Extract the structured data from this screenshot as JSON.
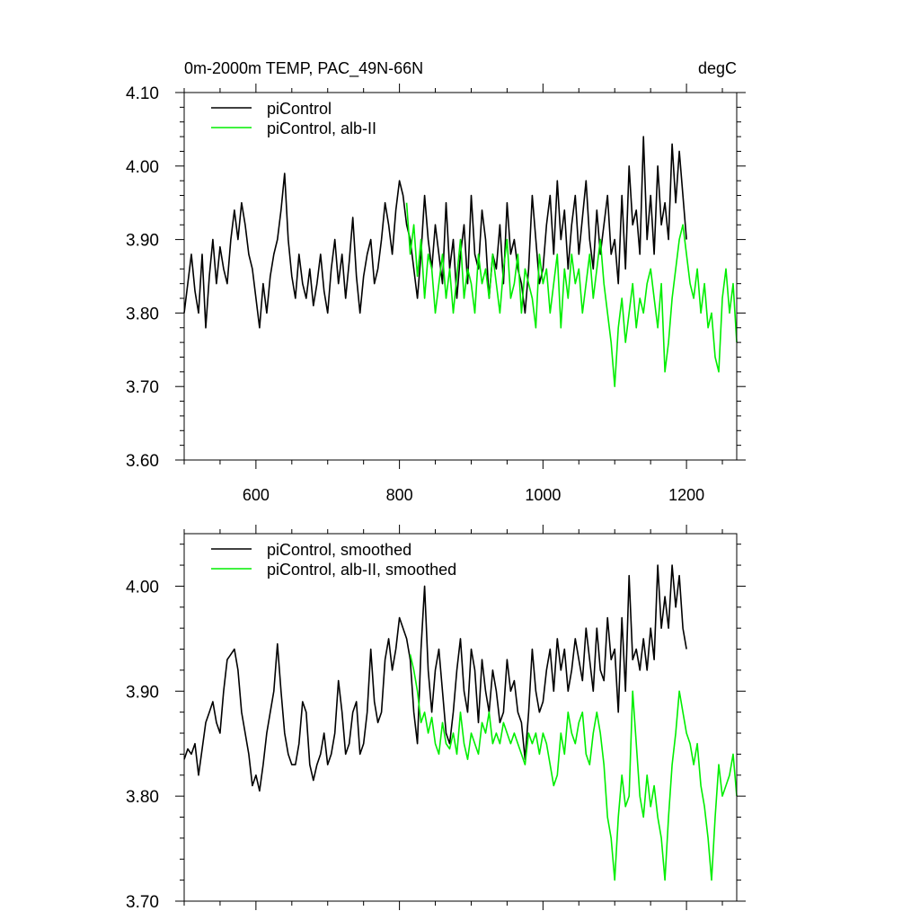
{
  "chart_data": [
    {
      "type": "line",
      "title_left": "0m-2000m TEMP, PAC_49N-66N",
      "title_right": "degC",
      "xlim": [
        500,
        1270
      ],
      "ylim": [
        3.6,
        4.1
      ],
      "xticks": [
        600,
        800,
        1000,
        1200
      ],
      "xtick_labels": [
        "600",
        "800",
        "1000",
        "1200"
      ],
      "yticks": [
        3.6,
        3.7,
        3.8,
        3.9,
        4.0,
        4.1
      ],
      "ytick_labels": [
        "3.60",
        "3.70",
        "3.80",
        "3.90",
        "4.00",
        "4.10"
      ],
      "legend_position": "top-left",
      "series": [
        {
          "name": "piControl",
          "color": "#000000",
          "x": [
            500,
            505,
            510,
            515,
            520,
            525,
            530,
            535,
            540,
            545,
            550,
            555,
            560,
            565,
            570,
            575,
            580,
            585,
            590,
            595,
            600,
            605,
            610,
            615,
            620,
            625,
            630,
            635,
            640,
            645,
            650,
            655,
            660,
            665,
            670,
            675,
            680,
            685,
            690,
            695,
            700,
            705,
            710,
            715,
            720,
            725,
            730,
            735,
            740,
            745,
            750,
            755,
            760,
            765,
            770,
            775,
            780,
            785,
            790,
            795,
            800,
            805,
            810,
            815,
            820,
            825,
            830,
            835,
            840,
            845,
            850,
            855,
            860,
            865,
            870,
            875,
            880,
            885,
            890,
            895,
            900,
            905,
            910,
            915,
            920,
            925,
            930,
            935,
            940,
            945,
            950,
            955,
            960,
            965,
            970,
            975,
            980,
            985,
            990,
            995,
            1000,
            1005,
            1010,
            1015,
            1020,
            1025,
            1030,
            1035,
            1040,
            1045,
            1050,
            1055,
            1060,
            1065,
            1070,
            1075,
            1080,
            1085,
            1090,
            1095,
            1100,
            1105,
            1110,
            1115,
            1120,
            1125,
            1130,
            1135,
            1140,
            1145,
            1150,
            1155,
            1160,
            1165,
            1170,
            1175,
            1180,
            1185,
            1190,
            1195,
            1200
          ],
          "y": [
            3.8,
            3.84,
            3.88,
            3.83,
            3.8,
            3.88,
            3.78,
            3.85,
            3.9,
            3.84,
            3.89,
            3.86,
            3.84,
            3.9,
            3.94,
            3.9,
            3.95,
            3.92,
            3.88,
            3.86,
            3.82,
            3.78,
            3.84,
            3.8,
            3.85,
            3.88,
            3.9,
            3.94,
            3.99,
            3.9,
            3.85,
            3.82,
            3.88,
            3.84,
            3.82,
            3.86,
            3.81,
            3.84,
            3.88,
            3.83,
            3.8,
            3.86,
            3.9,
            3.84,
            3.88,
            3.82,
            3.87,
            3.93,
            3.85,
            3.8,
            3.85,
            3.88,
            3.9,
            3.84,
            3.86,
            3.9,
            3.95,
            3.92,
            3.88,
            3.94,
            3.98,
            3.96,
            3.92,
            3.9,
            3.86,
            3.82,
            3.88,
            3.96,
            3.9,
            3.86,
            3.92,
            3.88,
            3.84,
            3.95,
            3.86,
            3.9,
            3.82,
            3.88,
            3.92,
            3.84,
            3.96,
            3.88,
            3.86,
            3.94,
            3.9,
            3.82,
            3.88,
            3.86,
            3.92,
            3.84,
            3.95,
            3.88,
            3.9,
            3.86,
            3.84,
            3.8,
            3.86,
            3.96,
            3.9,
            3.84,
            3.86,
            3.92,
            3.96,
            3.88,
            3.98,
            3.9,
            3.94,
            3.86,
            3.92,
            3.96,
            3.88,
            3.93,
            3.98,
            3.9,
            3.86,
            3.94,
            3.88,
            3.92,
            3.96,
            3.88,
            3.9,
            3.84,
            3.96,
            3.86,
            4.0,
            3.92,
            3.94,
            3.88,
            4.04,
            3.9,
            3.96,
            3.88,
            4.0,
            3.92,
            3.95,
            3.9,
            4.03,
            3.95,
            4.02,
            3.96,
            3.9
          ]
        },
        {
          "name": "piControl, alb-II",
          "color": "#00ee00",
          "x": [
            810,
            815,
            820,
            825,
            830,
            835,
            840,
            845,
            850,
            855,
            860,
            865,
            870,
            875,
            880,
            885,
            890,
            895,
            900,
            905,
            910,
            915,
            920,
            925,
            930,
            935,
            940,
            945,
            950,
            955,
            960,
            965,
            970,
            975,
            980,
            985,
            990,
            995,
            1000,
            1005,
            1010,
            1015,
            1020,
            1025,
            1030,
            1035,
            1040,
            1045,
            1050,
            1055,
            1060,
            1065,
            1070,
            1075,
            1080,
            1085,
            1090,
            1095,
            1100,
            1105,
            1110,
            1115,
            1120,
            1125,
            1130,
            1135,
            1140,
            1145,
            1150,
            1155,
            1160,
            1165,
            1170,
            1175,
            1180,
            1185,
            1190,
            1195,
            1200,
            1205,
            1210,
            1215,
            1220,
            1225,
            1230,
            1235,
            1240,
            1245,
            1250,
            1255,
            1260,
            1265,
            1270
          ],
          "y": [
            3.95,
            3.88,
            3.92,
            3.85,
            3.9,
            3.82,
            3.88,
            3.86,
            3.8,
            3.84,
            3.88,
            3.82,
            3.86,
            3.8,
            3.85,
            3.9,
            3.82,
            3.86,
            3.84,
            3.8,
            3.88,
            3.84,
            3.86,
            3.82,
            3.88,
            3.84,
            3.8,
            3.86,
            3.9,
            3.82,
            3.84,
            3.88,
            3.8,
            3.86,
            3.84,
            3.82,
            3.78,
            3.88,
            3.84,
            3.86,
            3.8,
            3.84,
            3.88,
            3.78,
            3.86,
            3.82,
            3.88,
            3.84,
            3.86,
            3.8,
            3.84,
            3.88,
            3.82,
            3.86,
            3.9,
            3.84,
            3.8,
            3.76,
            3.7,
            3.78,
            3.82,
            3.76,
            3.8,
            3.84,
            3.78,
            3.82,
            3.8,
            3.84,
            3.86,
            3.82,
            3.78,
            3.84,
            3.72,
            3.76,
            3.82,
            3.86,
            3.9,
            3.92,
            3.88,
            3.84,
            3.82,
            3.86,
            3.8,
            3.84,
            3.78,
            3.8,
            3.74,
            3.72,
            3.82,
            3.86,
            3.8,
            3.84,
            3.76
          ]
        }
      ]
    },
    {
      "type": "line",
      "xlim": [
        500,
        1270
      ],
      "ylim": [
        3.7,
        4.05
      ],
      "xticks": [
        600,
        800,
        1000,
        1200
      ],
      "yticks": [
        3.7,
        3.8,
        3.9,
        4.0
      ],
      "ytick_labels": [
        "3.70",
        "3.80",
        "3.90",
        "4.00"
      ],
      "legend_position": "top-left",
      "series": [
        {
          "name": "piControl, smoothed",
          "color": "#000000",
          "x": [
            500,
            505,
            510,
            515,
            520,
            525,
            530,
            535,
            540,
            545,
            550,
            555,
            560,
            565,
            570,
            575,
            580,
            585,
            590,
            595,
            600,
            605,
            610,
            615,
            620,
            625,
            630,
            635,
            640,
            645,
            650,
            655,
            660,
            665,
            670,
            675,
            680,
            685,
            690,
            695,
            700,
            705,
            710,
            715,
            720,
            725,
            730,
            735,
            740,
            745,
            750,
            755,
            760,
            765,
            770,
            775,
            780,
            785,
            790,
            795,
            800,
            805,
            810,
            815,
            820,
            825,
            830,
            835,
            840,
            845,
            850,
            855,
            860,
            865,
            870,
            875,
            880,
            885,
            890,
            895,
            900,
            905,
            910,
            915,
            920,
            925,
            930,
            935,
            940,
            945,
            950,
            955,
            960,
            965,
            970,
            975,
            980,
            985,
            990,
            995,
            1000,
            1005,
            1010,
            1015,
            1020,
            1025,
            1030,
            1035,
            1040,
            1045,
            1050,
            1055,
            1060,
            1065,
            1070,
            1075,
            1080,
            1085,
            1090,
            1095,
            1100,
            1105,
            1110,
            1115,
            1120,
            1125,
            1130,
            1135,
            1140,
            1145,
            1150,
            1155,
            1160,
            1165,
            1170,
            1175,
            1180,
            1185,
            1190,
            1195,
            1200
          ],
          "y": [
            3.835,
            3.845,
            3.84,
            3.85,
            3.82,
            3.845,
            3.87,
            3.88,
            3.89,
            3.87,
            3.86,
            3.9,
            3.93,
            3.935,
            3.94,
            3.92,
            3.88,
            3.86,
            3.84,
            3.81,
            3.82,
            3.805,
            3.83,
            3.86,
            3.88,
            3.9,
            3.945,
            3.9,
            3.86,
            3.84,
            3.83,
            3.83,
            3.85,
            3.89,
            3.88,
            3.83,
            3.815,
            3.83,
            3.84,
            3.86,
            3.83,
            3.84,
            3.86,
            3.91,
            3.88,
            3.84,
            3.85,
            3.88,
            3.89,
            3.84,
            3.85,
            3.88,
            3.94,
            3.89,
            3.87,
            3.88,
            3.93,
            3.95,
            3.92,
            3.94,
            3.97,
            3.96,
            3.95,
            3.93,
            3.88,
            3.85,
            3.94,
            4.0,
            3.92,
            3.88,
            3.92,
            3.94,
            3.9,
            3.86,
            3.85,
            3.88,
            3.92,
            3.95,
            3.9,
            3.88,
            3.94,
            3.92,
            3.87,
            3.93,
            3.9,
            3.88,
            3.92,
            3.9,
            3.87,
            3.88,
            3.93,
            3.9,
            3.91,
            3.88,
            3.87,
            3.835,
            3.88,
            3.94,
            3.9,
            3.88,
            3.89,
            3.92,
            3.94,
            3.9,
            3.95,
            3.92,
            3.94,
            3.9,
            3.92,
            3.95,
            3.93,
            3.91,
            3.96,
            3.93,
            3.9,
            3.96,
            3.92,
            3.91,
            3.97,
            3.93,
            3.94,
            3.88,
            3.97,
            3.9,
            4.01,
            3.93,
            3.94,
            3.92,
            3.95,
            3.92,
            3.96,
            3.93,
            4.02,
            3.96,
            3.99,
            3.96,
            4.02,
            3.98,
            4.01,
            3.96,
            3.94
          ]
        },
        {
          "name": "piControl, alb-II, smoothed",
          "color": "#00ee00",
          "x": [
            815,
            820,
            825,
            830,
            835,
            840,
            845,
            850,
            855,
            860,
            865,
            870,
            875,
            880,
            885,
            890,
            895,
            900,
            905,
            910,
            915,
            920,
            925,
            930,
            935,
            940,
            945,
            950,
            955,
            960,
            965,
            970,
            975,
            980,
            985,
            990,
            995,
            1000,
            1005,
            1010,
            1015,
            1020,
            1025,
            1030,
            1035,
            1040,
            1045,
            1050,
            1055,
            1060,
            1065,
            1070,
            1075,
            1080,
            1085,
            1090,
            1095,
            1100,
            1105,
            1110,
            1115,
            1120,
            1125,
            1130,
            1135,
            1140,
            1145,
            1150,
            1155,
            1160,
            1165,
            1170,
            1175,
            1180,
            1185,
            1190,
            1195,
            1200,
            1205,
            1210,
            1215,
            1220,
            1225,
            1230,
            1235,
            1240,
            1245,
            1250,
            1255,
            1260,
            1265,
            1270
          ],
          "y": [
            3.935,
            3.92,
            3.9,
            3.87,
            3.88,
            3.86,
            3.875,
            3.85,
            3.84,
            3.87,
            3.85,
            3.845,
            3.86,
            3.84,
            3.88,
            3.85,
            3.835,
            3.86,
            3.85,
            3.84,
            3.87,
            3.86,
            3.88,
            3.85,
            3.86,
            3.85,
            3.87,
            3.86,
            3.85,
            3.86,
            3.85,
            3.84,
            3.83,
            3.86,
            3.85,
            3.86,
            3.84,
            3.86,
            3.85,
            3.83,
            3.81,
            3.82,
            3.86,
            3.84,
            3.88,
            3.86,
            3.85,
            3.87,
            3.88,
            3.84,
            3.83,
            3.86,
            3.88,
            3.86,
            3.83,
            3.78,
            3.76,
            3.72,
            3.78,
            3.82,
            3.79,
            3.8,
            3.9,
            3.85,
            3.8,
            3.78,
            3.82,
            3.79,
            3.81,
            3.78,
            3.76,
            3.72,
            3.78,
            3.83,
            3.86,
            3.9,
            3.88,
            3.86,
            3.85,
            3.83,
            3.85,
            3.81,
            3.79,
            3.76,
            3.72,
            3.78,
            3.83,
            3.8,
            3.81,
            3.82,
            3.84,
            3.8
          ]
        }
      ]
    }
  ]
}
